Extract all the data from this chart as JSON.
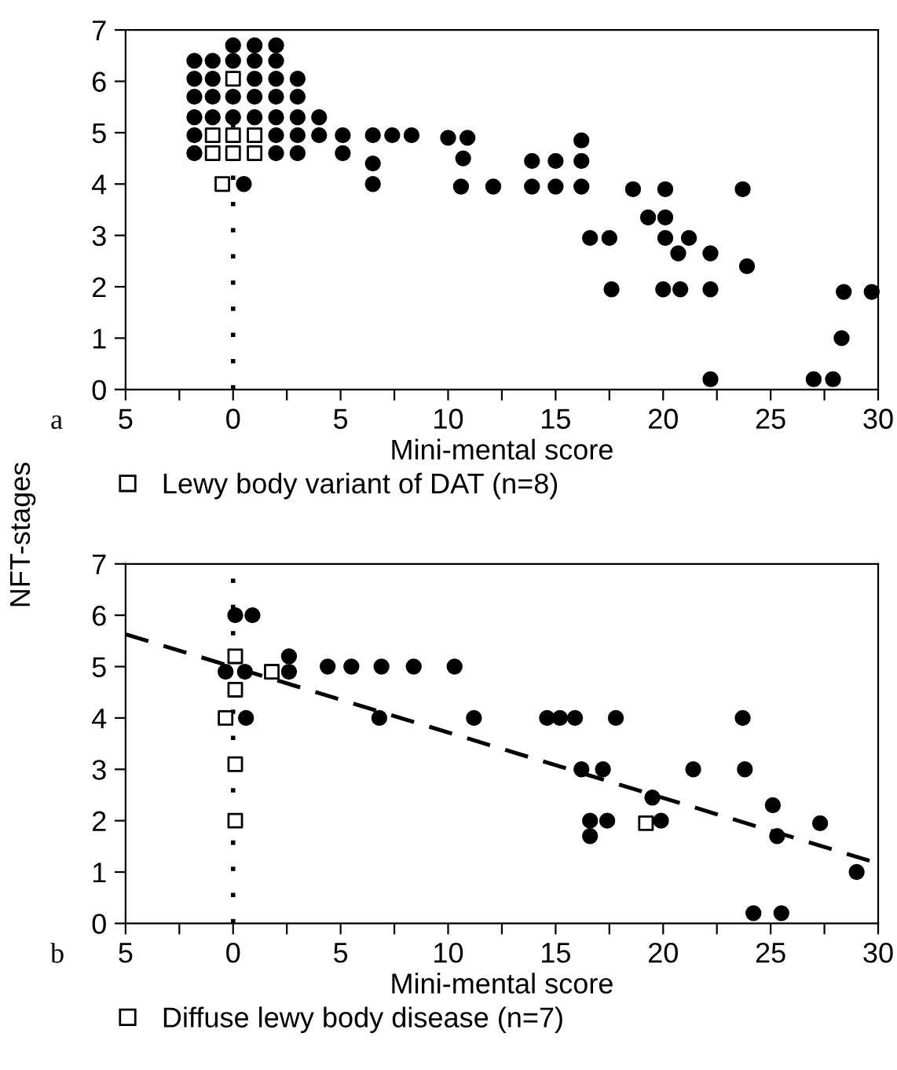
{
  "chart_data": [
    {
      "type": "scatter",
      "xlabel": "Mini-mental score",
      "ylabel": "NFT-stages",
      "annotations": [
        "a"
      ],
      "xlim": [
        -5,
        30
      ],
      "ylim": [
        0,
        7
      ],
      "xticks": [
        {
          "value": -5,
          "label": "5"
        },
        {
          "value": -2.5,
          "label": null
        },
        0,
        {
          "value": 2.5,
          "label": null
        },
        5,
        {
          "value": 7.5,
          "label": null
        },
        10,
        {
          "value": 12.5,
          "label": null
        },
        15,
        {
          "value": 17.5,
          "label": null
        },
        20,
        {
          "value": 22.5,
          "label": null
        },
        25,
        {
          "value": 27.5,
          "label": null
        },
        30
      ],
      "yticks": [
        0,
        1,
        2,
        3,
        4,
        5,
        6,
        7
      ],
      "grid": false,
      "legend": "bottom",
      "ref_lines": [
        {
          "axis": "x",
          "value": 0,
          "line_style": "dotted",
          "color": "#000000"
        }
      ],
      "series": [
        {
          "marker": "circle",
          "color": "#000000",
          "x": [
            0,
            1,
            2,
            -1.8,
            -0.95,
            0,
            1,
            2,
            -1.8,
            -0.95,
            1,
            2,
            3,
            -1.8,
            -0.95,
            0,
            1,
            2,
            3,
            -1.8,
            -0.95,
            0,
            1,
            2,
            3,
            4,
            -1.8,
            2,
            3,
            4,
            5.1,
            6.5,
            7.4,
            8.3,
            10.0,
            -1.8,
            2,
            3,
            5.1,
            6.5,
            6.5,
            0.5,
            10.9,
            10.7,
            10.6,
            12.1,
            13.9,
            13.9,
            15.0,
            15.0,
            16.2,
            16.2,
            16.2,
            16.6,
            17.5,
            17.6,
            18.6,
            20.1,
            19.3,
            20.1,
            20.1,
            21.2,
            20.7,
            20.0,
            20.8,
            22.2,
            22.2,
            22.2,
            23.7,
            23.9,
            27.0,
            27.9,
            28.3,
            28.4,
            29.7
          ],
          "values": [
            6.7,
            6.7,
            6.7,
            6.4,
            6.4,
            6.4,
            6.4,
            6.4,
            6.05,
            6.05,
            6.05,
            6.05,
            6.05,
            5.7,
            5.7,
            5.7,
            5.7,
            5.7,
            5.7,
            5.3,
            5.3,
            5.3,
            5.3,
            5.3,
            5.3,
            5.3,
            4.95,
            4.95,
            4.95,
            4.95,
            4.95,
            4.95,
            4.95,
            4.95,
            4.9,
            4.6,
            4.6,
            4.6,
            4.6,
            4.4,
            4.0,
            4.0,
            4.9,
            4.5,
            3.95,
            3.95,
            4.45,
            3.95,
            4.45,
            3.95,
            4.85,
            4.45,
            3.95,
            2.95,
            2.95,
            1.95,
            3.9,
            3.9,
            3.35,
            3.35,
            2.95,
            2.95,
            2.65,
            1.95,
            1.95,
            2.65,
            1.95,
            0.2,
            3.9,
            2.4,
            0.2,
            0.2,
            1.0,
            1.9,
            1.9
          ]
        },
        {
          "name": "Lewy body variant of DAT (n=8)",
          "marker": "square",
          "color": "#ffffff",
          "x": [
            0,
            -0.95,
            0,
            1,
            -0.95,
            0,
            1,
            -0.5
          ],
          "values": [
            6.05,
            4.95,
            4.95,
            4.95,
            4.6,
            4.6,
            4.6,
            4.0
          ]
        }
      ]
    },
    {
      "type": "scatter",
      "xlabel": "Mini-mental score",
      "annotations": [
        "b"
      ],
      "xlim": [
        -5,
        30
      ],
      "ylim": [
        0,
        7
      ],
      "xticks": [
        {
          "value": -5,
          "label": "5"
        },
        {
          "value": -2.5,
          "label": null
        },
        0,
        {
          "value": 2.5,
          "label": null
        },
        5,
        {
          "value": 7.5,
          "label": null
        },
        10,
        {
          "value": 12.5,
          "label": null
        },
        15,
        {
          "value": 17.5,
          "label": null
        },
        20,
        {
          "value": 22.5,
          "label": null
        },
        25,
        {
          "value": 27.5,
          "label": null
        },
        30
      ],
      "yticks": [
        0,
        1,
        2,
        3,
        4,
        5,
        6,
        7
      ],
      "grid": false,
      "legend": "bottom",
      "ref_lines": [
        {
          "axis": "x",
          "value": 0,
          "line_style": "dotted",
          "color": "#000000"
        }
      ],
      "series": [
        {
          "type": "line",
          "line_style": "dashed",
          "marker": "none",
          "color": "#000000",
          "x": [
            -5,
            29.6
          ],
          "values": [
            5.63,
            1.22
          ]
        },
        {
          "marker": "circle",
          "color": "#000000",
          "x": [
            -0.35,
            0.1,
            0.9,
            0.55,
            0.6,
            2.6,
            2.6,
            4.4,
            5.5,
            6.9,
            8.4,
            10.3,
            6.8,
            11.2,
            14.6,
            15.2,
            15.9,
            17.8,
            16.2,
            17.2,
            16.6,
            16.6,
            17.4,
            19.5,
            19.9,
            21.4,
            23.7,
            23.8,
            25.1,
            25.3,
            27.3,
            29.0,
            24.2,
            25.5
          ],
          "values": [
            4.9,
            6.0,
            6.0,
            4.9,
            4.0,
            5.2,
            4.9,
            5.0,
            5.0,
            5.0,
            5.0,
            5.0,
            4.0,
            4.0,
            4.0,
            4.0,
            4.0,
            4.0,
            3.0,
            3.0,
            2.0,
            1.7,
            2.0,
            2.45,
            2.0,
            3.0,
            4.0,
            3.0,
            2.3,
            1.7,
            1.95,
            1.0,
            0.2,
            0.2
          ]
        },
        {
          "name": "Diffuse lewy body disease (n=7)",
          "marker": "square",
          "color": "#ffffff",
          "x": [
            0.1,
            0.1,
            -0.35,
            0.1,
            0.1,
            1.8,
            19.2
          ],
          "values": [
            5.2,
            4.55,
            4.0,
            3.1,
            2.0,
            4.9,
            1.95
          ]
        }
      ]
    }
  ]
}
